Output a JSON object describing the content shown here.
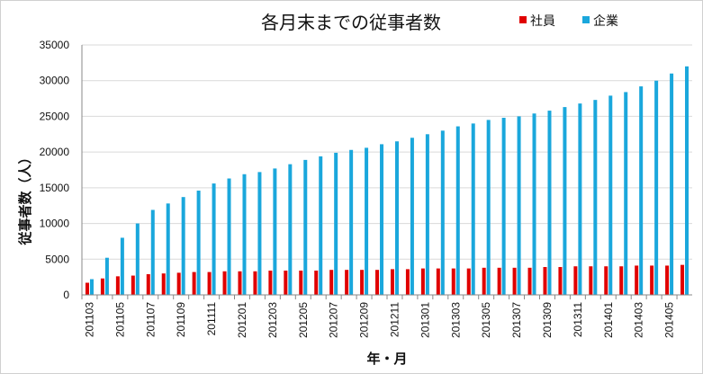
{
  "chart_data": {
    "type": "bar",
    "title": "各月末までの従事者数",
    "xlabel": "年・月",
    "ylabel": "従事者数（人）",
    "ylim": [
      0,
      35000
    ],
    "yticks": [
      0,
      5000,
      10000,
      15000,
      20000,
      25000,
      30000,
      35000
    ],
    "grid": true,
    "legend": "top-right",
    "categories": [
      "201103",
      "201104",
      "201105",
      "201106",
      "201107",
      "201108",
      "201109",
      "201110",
      "201111",
      "201112",
      "201201",
      "201202",
      "201203",
      "201204",
      "201205",
      "201206",
      "201207",
      "201208",
      "201209",
      "201210",
      "201211",
      "201212",
      "201301",
      "201302",
      "201303",
      "201304",
      "201305",
      "201306",
      "201307",
      "201308",
      "201309",
      "201310",
      "201311",
      "201312",
      "201401",
      "201402",
      "201403",
      "201404",
      "201405",
      "201406"
    ],
    "xtick_labels": [
      "201103",
      "201105",
      "201107",
      "201109",
      "201111",
      "201201",
      "201203",
      "201205",
      "201207",
      "201209",
      "201211",
      "201301",
      "201303",
      "201305",
      "201307",
      "201309",
      "201311",
      "201401",
      "201403",
      "201405"
    ],
    "series": [
      {
        "name": "社員",
        "color": "#e00000",
        "values": [
          1700,
          2300,
          2600,
          2700,
          2900,
          3000,
          3100,
          3200,
          3200,
          3300,
          3300,
          3300,
          3400,
          3400,
          3400,
          3400,
          3500,
          3500,
          3500,
          3500,
          3600,
          3600,
          3700,
          3700,
          3700,
          3700,
          3800,
          3800,
          3800,
          3800,
          3900,
          3900,
          4000,
          4000,
          4000,
          4000,
          4100,
          4100,
          4100,
          4200
        ]
      },
      {
        "name": "企業",
        "color": "#1aa7dc",
        "values": [
          2200,
          5200,
          8000,
          10000,
          11900,
          12800,
          13700,
          14600,
          15600,
          16300,
          16900,
          17200,
          17700,
          18300,
          18900,
          19400,
          19900,
          20300,
          20600,
          21100,
          21500,
          22000,
          22500,
          23000,
          23600,
          24000,
          24500,
          24800,
          25000,
          25400,
          25800,
          26300,
          26800,
          27300,
          27900,
          28400,
          29200,
          30000,
          31000,
          32000
        ]
      }
    ]
  }
}
